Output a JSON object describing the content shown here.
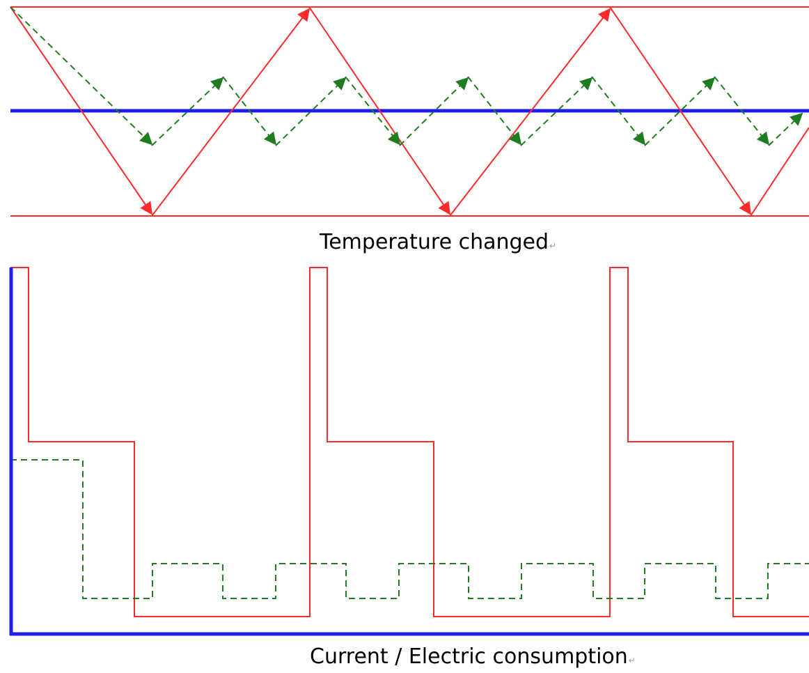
{
  "diagrams": {
    "temperature": {
      "caption": "Temperature changed",
      "return_mark": "↵",
      "colors": {
        "red": "#ff2a2a",
        "green": "#1e7d1e",
        "blue": "#1e1ee6"
      }
    },
    "current": {
      "caption": "Current / Electric consumption",
      "return_mark": "↵",
      "colors": {
        "red": "#ff2a2a",
        "green": "#1e7d1e",
        "blue": "#1e1ee6"
      }
    }
  }
}
